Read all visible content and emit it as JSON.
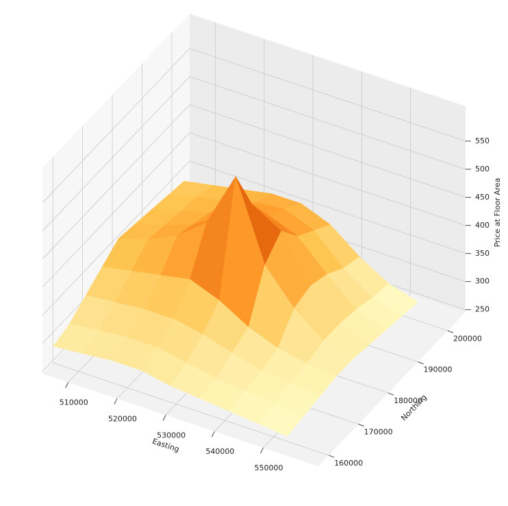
{
  "chart_data": {
    "type": "surface",
    "x_label": "Easting",
    "y_label": "Northing",
    "z_label": "Price at Floor Area",
    "x": [
      506000,
      512000,
      518000,
      524000,
      530000,
      536000,
      542000,
      548000,
      554000
    ],
    "y": [
      158000,
      163500,
      169000,
      174500,
      180000,
      185500,
      191000,
      196500,
      202000
    ],
    "z": [
      [
        290,
        295,
        300,
        300,
        290,
        285,
        280,
        275,
        270
      ],
      [
        300,
        305,
        310,
        310,
        300,
        290,
        285,
        280,
        275
      ],
      [
        320,
        325,
        330,
        330,
        320,
        305,
        290,
        285,
        280
      ],
      [
        340,
        350,
        360,
        370,
        350,
        320,
        300,
        290,
        285
      ],
      [
        360,
        375,
        400,
        440,
        540,
        400,
        340,
        300,
        285
      ],
      [
        355,
        370,
        390,
        420,
        460,
        430,
        350,
        300,
        280
      ],
      [
        350,
        365,
        380,
        400,
        410,
        390,
        340,
        295,
        275
      ],
      [
        345,
        360,
        370,
        385,
        390,
        370,
        320,
        285,
        270
      ],
      [
        340,
        350,
        360,
        370,
        370,
        350,
        310,
        280,
        265
      ]
    ],
    "xlim": [
      504700,
      561300
    ],
    "ylim": [
      156500,
      206000
    ],
    "zlim": [
      246,
      612
    ],
    "xticks": [
      510000,
      520000,
      530000,
      540000,
      550000
    ],
    "yticks": [
      160000,
      170000,
      180000,
      190000,
      200000
    ],
    "zticks": [
      250,
      300,
      350,
      400,
      450,
      500,
      550
    ],
    "colormap": [
      "#ffffcc",
      "#fee391",
      "#fec44f",
      "#fe9929",
      "#ec7014",
      "#cc4c02",
      "#662506"
    ],
    "grid": true
  }
}
